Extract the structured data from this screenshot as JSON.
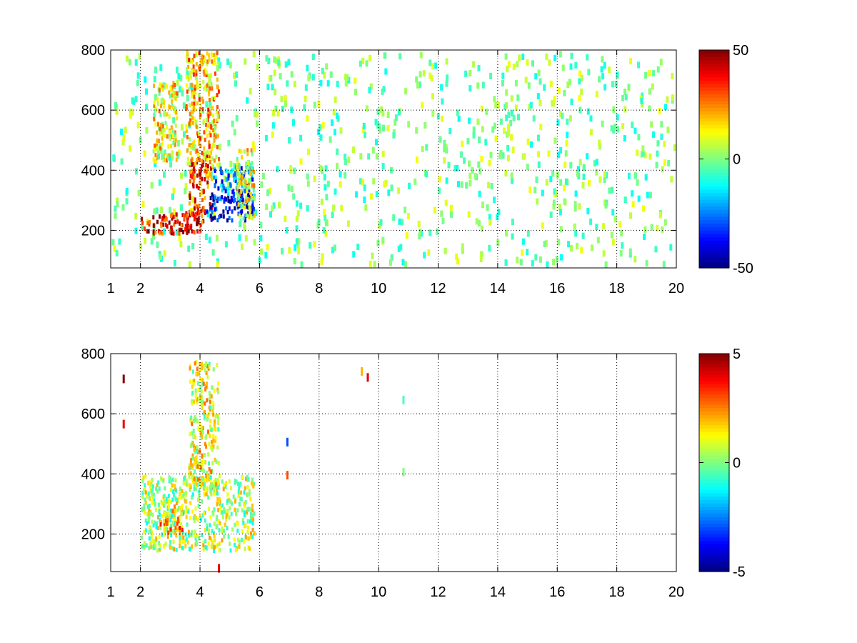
{
  "chart_data": [
    {
      "type": "heatmap",
      "panel": "top",
      "xticks": [
        1,
        2,
        4,
        6,
        8,
        10,
        12,
        14,
        16,
        18,
        20
      ],
      "xtick_labels": [
        "1",
        "2",
        "4",
        "6",
        "8",
        "10",
        "12",
        "14",
        "16",
        "18",
        "20"
      ],
      "yticks": [
        200,
        400,
        600,
        800
      ],
      "ytick_labels": [
        "200",
        "400",
        "600",
        "800"
      ],
      "xlim": [
        1,
        20
      ],
      "ylim": [
        75,
        800
      ],
      "grid": true,
      "grid_style": "dotted",
      "colormap": "jet",
      "colorbar": {
        "clim": [
          -50,
          50
        ],
        "tick_values": [
          50,
          0,
          -50
        ],
        "tick_labels": [
          "50",
          "0",
          "-50"
        ]
      },
      "features": [
        {
          "x": [
            2.0,
            3.6
          ],
          "y": [
            195,
            260
          ],
          "value": 40
        },
        {
          "x": [
            3.2,
            4.1
          ],
          "y": [
            200,
            270
          ],
          "value": 38
        },
        {
          "x": [
            3.6,
            4.4
          ],
          "y": [
            250,
            460
          ],
          "value": 32
        },
        {
          "x": [
            4.2,
            5.8
          ],
          "y": [
            240,
            330
          ],
          "value": -42
        },
        {
          "x": [
            4.4,
            5.8
          ],
          "y": [
            300,
            420
          ],
          "value": -25
        },
        {
          "x": [
            3.5,
            4.6
          ],
          "y": [
            420,
            800
          ],
          "value": 18
        },
        {
          "x": [
            2.4,
            3.2
          ],
          "y": [
            430,
            700
          ],
          "value": 12
        },
        {
          "x": [
            5.2,
            5.8
          ],
          "y": [
            230,
            480
          ],
          "value": 10
        }
      ],
      "scatter_noise": {
        "x": [
          1,
          20
        ],
        "y": [
          75,
          800
        ],
        "value_range": [
          -12,
          12
        ]
      }
    },
    {
      "type": "heatmap",
      "panel": "bottom",
      "xticks": [
        1,
        2,
        4,
        6,
        8,
        10,
        12,
        14,
        16,
        18,
        20
      ],
      "xtick_labels": [
        "1",
        "2",
        "4",
        "6",
        "8",
        "10",
        "12",
        "14",
        "16",
        "18",
        "20"
      ],
      "yticks": [
        200,
        400,
        600,
        800
      ],
      "ytick_labels": [
        "200",
        "400",
        "600",
        "800"
      ],
      "xlim": [
        1,
        20
      ],
      "ylim": [
        75,
        800
      ],
      "grid": true,
      "grid_style": "dotted",
      "colormap": "jet",
      "colorbar": {
        "clim": [
          -5,
          5
        ],
        "tick_values": [
          5,
          0,
          -5
        ],
        "tick_labels": [
          "5",
          "0",
          "-5"
        ]
      },
      "features": [
        {
          "x": [
            2.0,
            5.8
          ],
          "y": [
            150,
            400
          ],
          "value": 0.5
        },
        {
          "x": [
            3.6,
            4.6
          ],
          "y": [
            350,
            780
          ],
          "value": 1.0
        },
        {
          "x": [
            2.6,
            3.4
          ],
          "y": [
            210,
            300
          ],
          "value": 2.0
        }
      ],
      "sparse_points": [
        {
          "x": 1.4,
          "y": 730,
          "value": 5
        },
        {
          "x": 1.4,
          "y": 580,
          "value": 4
        },
        {
          "x": 9.4,
          "y": 755,
          "value": 2
        },
        {
          "x": 9.6,
          "y": 735,
          "value": 4
        },
        {
          "x": 10.8,
          "y": 660,
          "value": -0.5
        },
        {
          "x": 10.8,
          "y": 420,
          "value": 0
        },
        {
          "x": 6.9,
          "y": 520,
          "value": -3
        },
        {
          "x": 6.9,
          "y": 410,
          "value": 3
        },
        {
          "x": 4.6,
          "y": 100,
          "value": 4
        }
      ]
    }
  ]
}
